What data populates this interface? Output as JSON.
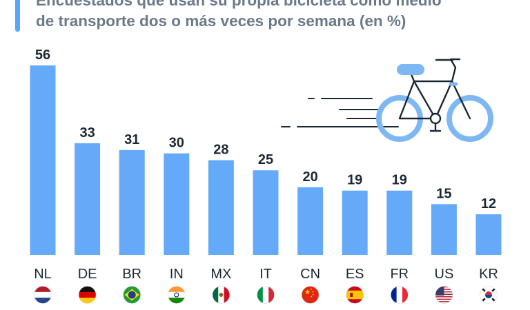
{
  "title_lines": [
    "Encuestados que usan su propia bicicleta como medio",
    "de transporte dos o más veces por semana (en %)"
  ],
  "colors": {
    "bar": "#64aaf8",
    "icon": "#7db8f5",
    "icon_outline": "#1a2833",
    "accent": "#5aa6f7"
  },
  "icons": {
    "illustration": "bicycle-icon"
  },
  "chart_data": {
    "type": "bar",
    "title": "",
    "xlabel": "",
    "ylabel": "",
    "ylim": [
      0,
      56
    ],
    "grid": false,
    "legend": "none",
    "categories": [
      "NL",
      "DE",
      "BR",
      "IN",
      "MX",
      "IT",
      "CN",
      "ES",
      "FR",
      "US",
      "KR"
    ],
    "values": [
      56,
      33,
      31,
      30,
      28,
      25,
      20,
      19,
      19,
      15,
      12
    ],
    "flags": [
      "netherlands-flag",
      "germany-flag",
      "brazil-flag",
      "india-flag",
      "mexico-flag",
      "italy-flag",
      "china-flag",
      "spain-flag",
      "france-flag",
      "usa-flag",
      "south-korea-flag"
    ]
  }
}
